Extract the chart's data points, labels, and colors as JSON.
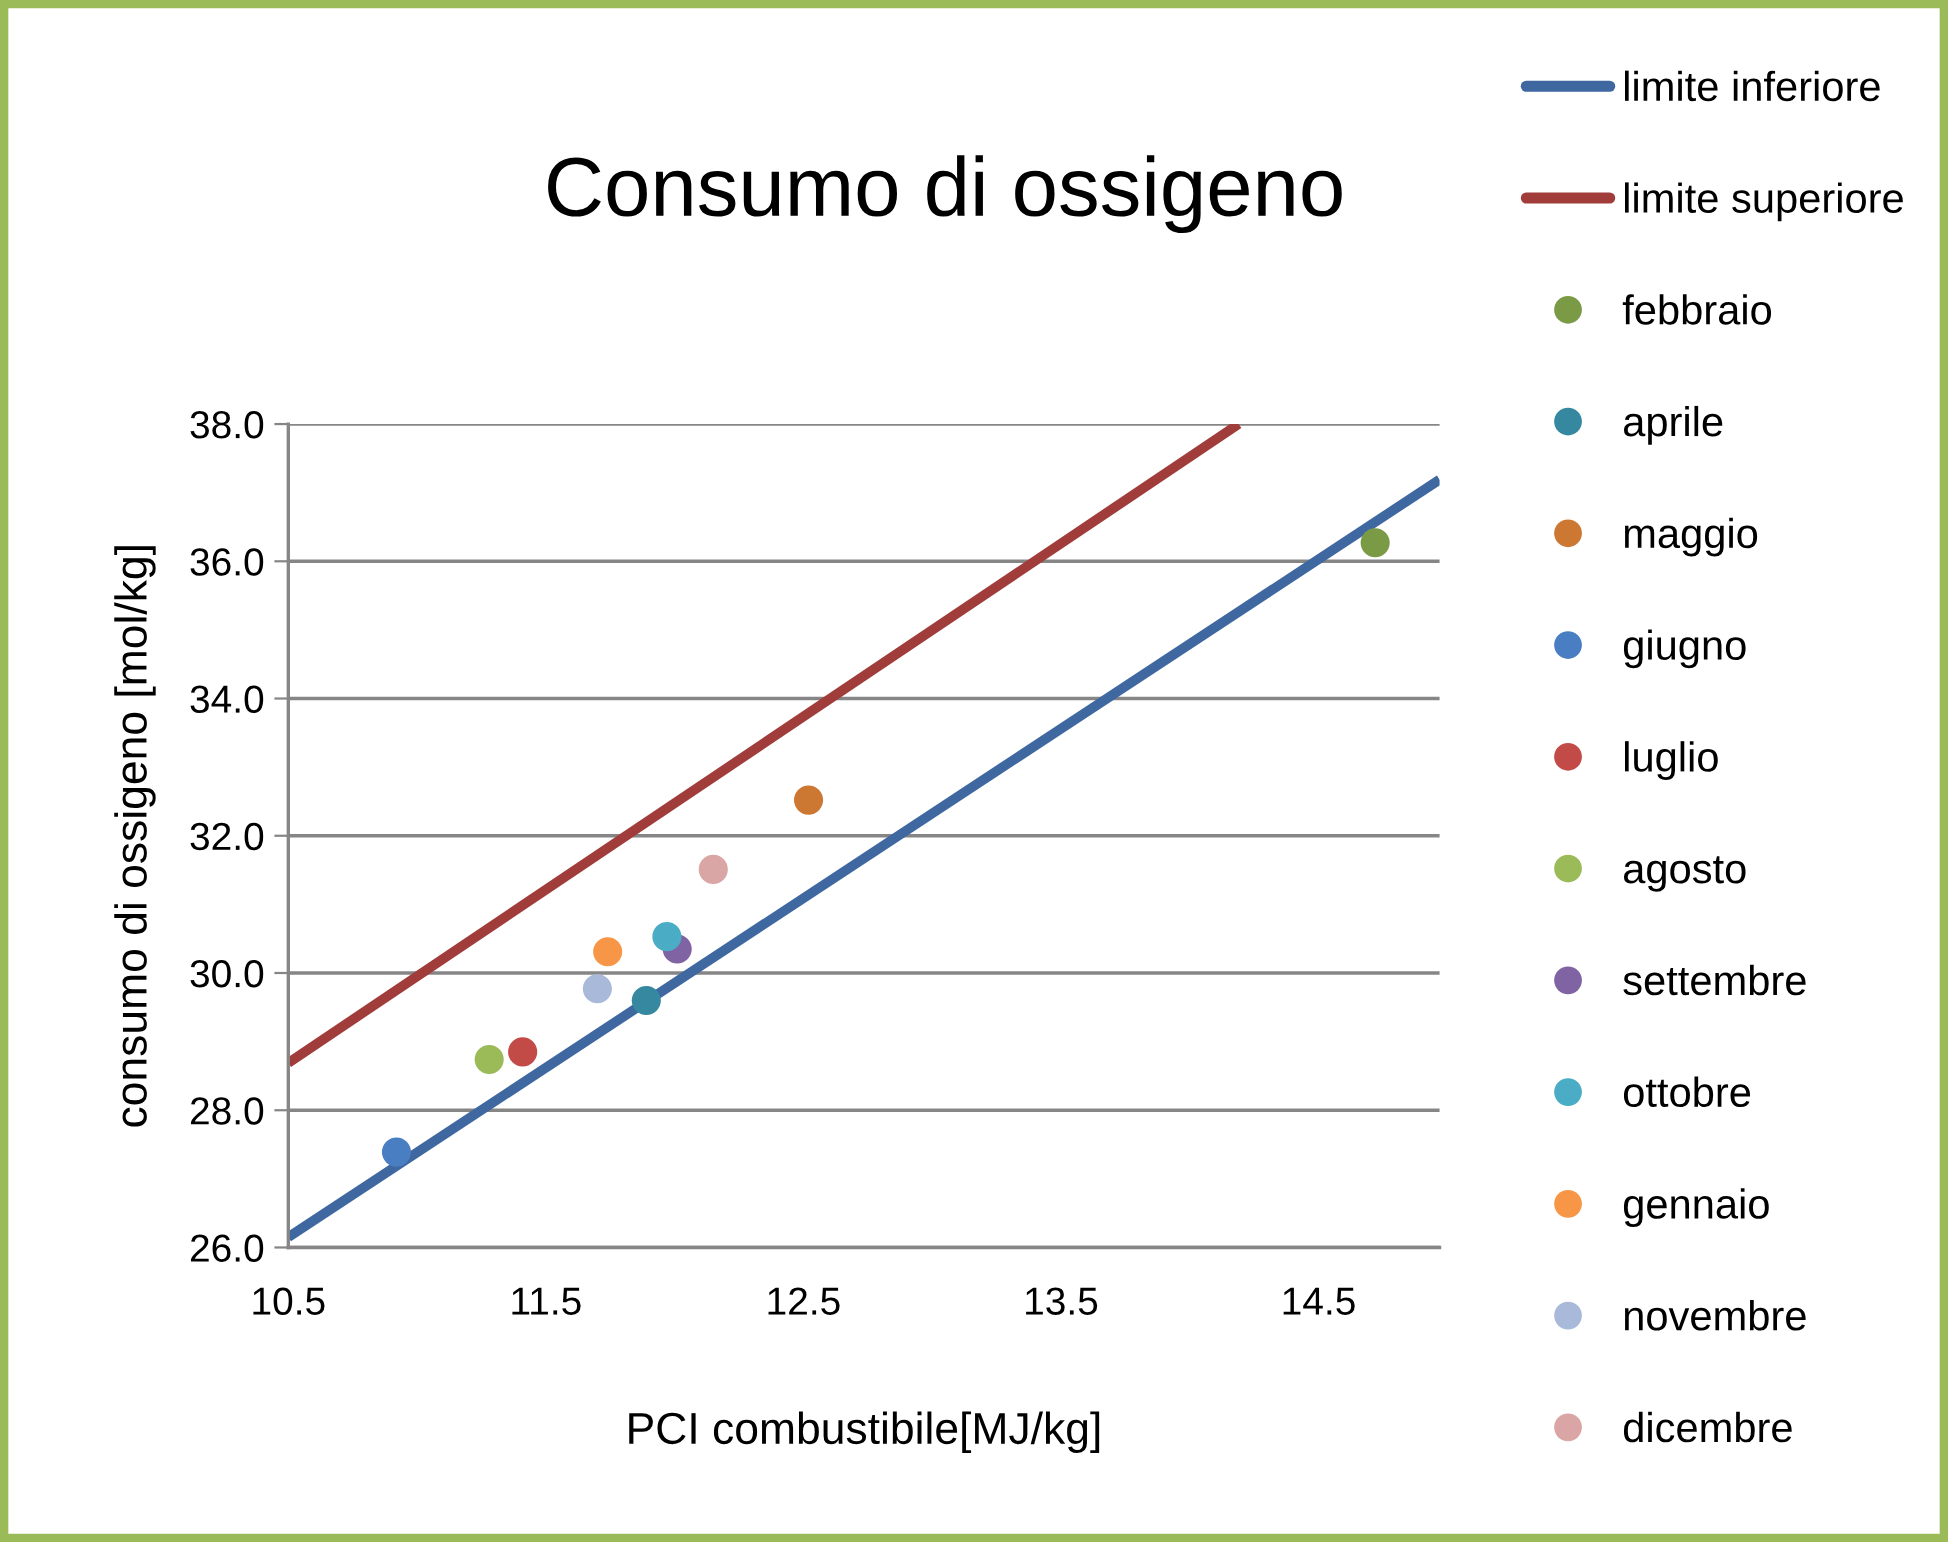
{
  "chart_data": {
    "type": "scatter",
    "title": "Consumo di ossigeno",
    "xlabel": "PCI combustibile[MJ/kg]",
    "ylabel": "consumo di ossigeno [mol/kg]",
    "xlim": [
      10.5,
      14.97
    ],
    "xticks": [
      10.5,
      11.5,
      12.5,
      13.5,
      14.5
    ],
    "ylim": [
      26,
      38
    ],
    "yticks": [
      {
        "value": 26,
        "label": "26.0"
      },
      {
        "value": 28,
        "label": "28.0"
      },
      {
        "value": 30,
        "label": "30.0"
      },
      {
        "value": 32,
        "label": "32.0"
      },
      {
        "value": 34,
        "label": "34.0"
      },
      {
        "value": 36,
        "label": "36.0"
      },
      {
        "value": 38,
        "label": "38.0"
      }
    ],
    "grid": "y",
    "legend": "right",
    "marker": "circle",
    "series": [
      {
        "name": "limite inferiore",
        "type": "line",
        "marker": "none",
        "color": "#3f67a0",
        "x": [
          10.5,
          14.97
        ],
        "values": [
          26.15,
          37.19
        ]
      },
      {
        "name": "limite superiore",
        "type": "line",
        "marker": "none",
        "color": "#a03c3a",
        "x": [
          10.5,
          14.19
        ],
        "values": [
          28.69,
          38.0
        ]
      },
      {
        "name": "febbraio",
        "color": "#7a9a45",
        "x": [
          14.72
        ],
        "values": [
          36.27
        ]
      },
      {
        "name": "aprile",
        "color": "#35889f",
        "x": [
          11.89
        ],
        "values": [
          29.6
        ]
      },
      {
        "name": "maggio",
        "color": "#cc7732",
        "x": [
          12.52
        ],
        "values": [
          32.52
        ]
      },
      {
        "name": "giugno",
        "color": "#4a7ec2",
        "x": [
          10.92
        ],
        "values": [
          27.39
        ]
      },
      {
        "name": "luglio",
        "color": "#c24b48",
        "x": [
          11.41
        ],
        "values": [
          28.85
        ]
      },
      {
        "name": "agosto",
        "color": "#9bbb59",
        "x": [
          11.28
        ],
        "values": [
          28.74
        ]
      },
      {
        "name": "settembre",
        "color": "#7f63a2",
        "x": [
          12.01
        ],
        "values": [
          30.35
        ]
      },
      {
        "name": "ottobre",
        "color": "#4bacc6",
        "x": [
          11.97
        ],
        "values": [
          30.53
        ]
      },
      {
        "name": "gennaio",
        "color": "#f79646",
        "x": [
          11.74
        ],
        "values": [
          30.31
        ]
      },
      {
        "name": "novembre",
        "color": "#a9b9d9",
        "x": [
          11.7
        ],
        "values": [
          29.77
        ]
      },
      {
        "name": "dicembre",
        "color": "#d9a5a5",
        "x": [
          12.15
        ],
        "values": [
          31.51
        ]
      }
    ]
  }
}
